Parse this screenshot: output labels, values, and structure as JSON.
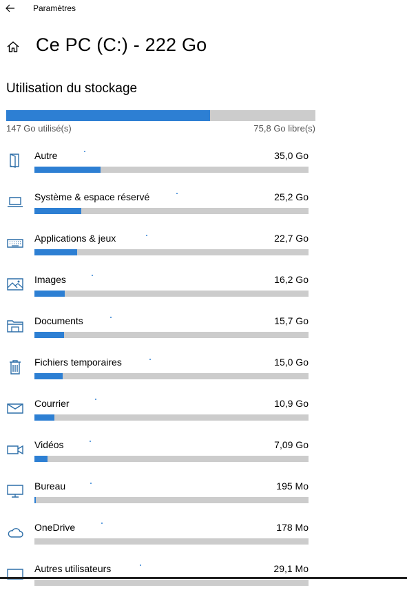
{
  "titlebar": {
    "app_title": "Paramètres"
  },
  "header": {
    "title": "Ce PC (C:) - 222 Go"
  },
  "section": {
    "title": "Utilisation du stockage"
  },
  "total": {
    "used_label": "147 Go utilisé(s)",
    "free_label": "75,8 Go libre(s)",
    "used_fraction": 0.66
  },
  "colors": {
    "accent": "#2d7fd3",
    "track": "#cccccc",
    "icon": "#2d6ea8"
  },
  "categories": [
    {
      "name": "Autre",
      "size": "35,0 Go",
      "icon": "door-icon",
      "fill": 0.24
    },
    {
      "name": "Système & espace réservé",
      "size": "25,2 Go",
      "icon": "laptop-icon",
      "fill": 0.17
    },
    {
      "name": "Applications & jeux",
      "size": "22,7 Go",
      "icon": "keyboard-icon",
      "fill": 0.155
    },
    {
      "name": "Images",
      "size": "16,2 Go",
      "icon": "picture-icon",
      "fill": 0.11
    },
    {
      "name": "Documents",
      "size": "15,7 Go",
      "icon": "folder-icon",
      "fill": 0.107
    },
    {
      "name": "Fichiers temporaires",
      "size": "15,0 Go",
      "icon": "trash-icon",
      "fill": 0.102
    },
    {
      "name": "Courrier",
      "size": "10,9 Go",
      "icon": "mail-icon",
      "fill": 0.074
    },
    {
      "name": "Vidéos",
      "size": "7,09 Go",
      "icon": "video-icon",
      "fill": 0.048
    },
    {
      "name": "Bureau",
      "size": "195 Mo",
      "icon": "monitor-icon",
      "fill": 0.003
    },
    {
      "name": "OneDrive",
      "size": "178 Mo",
      "icon": "cloud-icon",
      "fill": 0.0
    },
    {
      "name": "Autres utilisateurs",
      "size": "29,1 Mo",
      "icon": "users-icon",
      "fill": 0.0
    }
  ]
}
